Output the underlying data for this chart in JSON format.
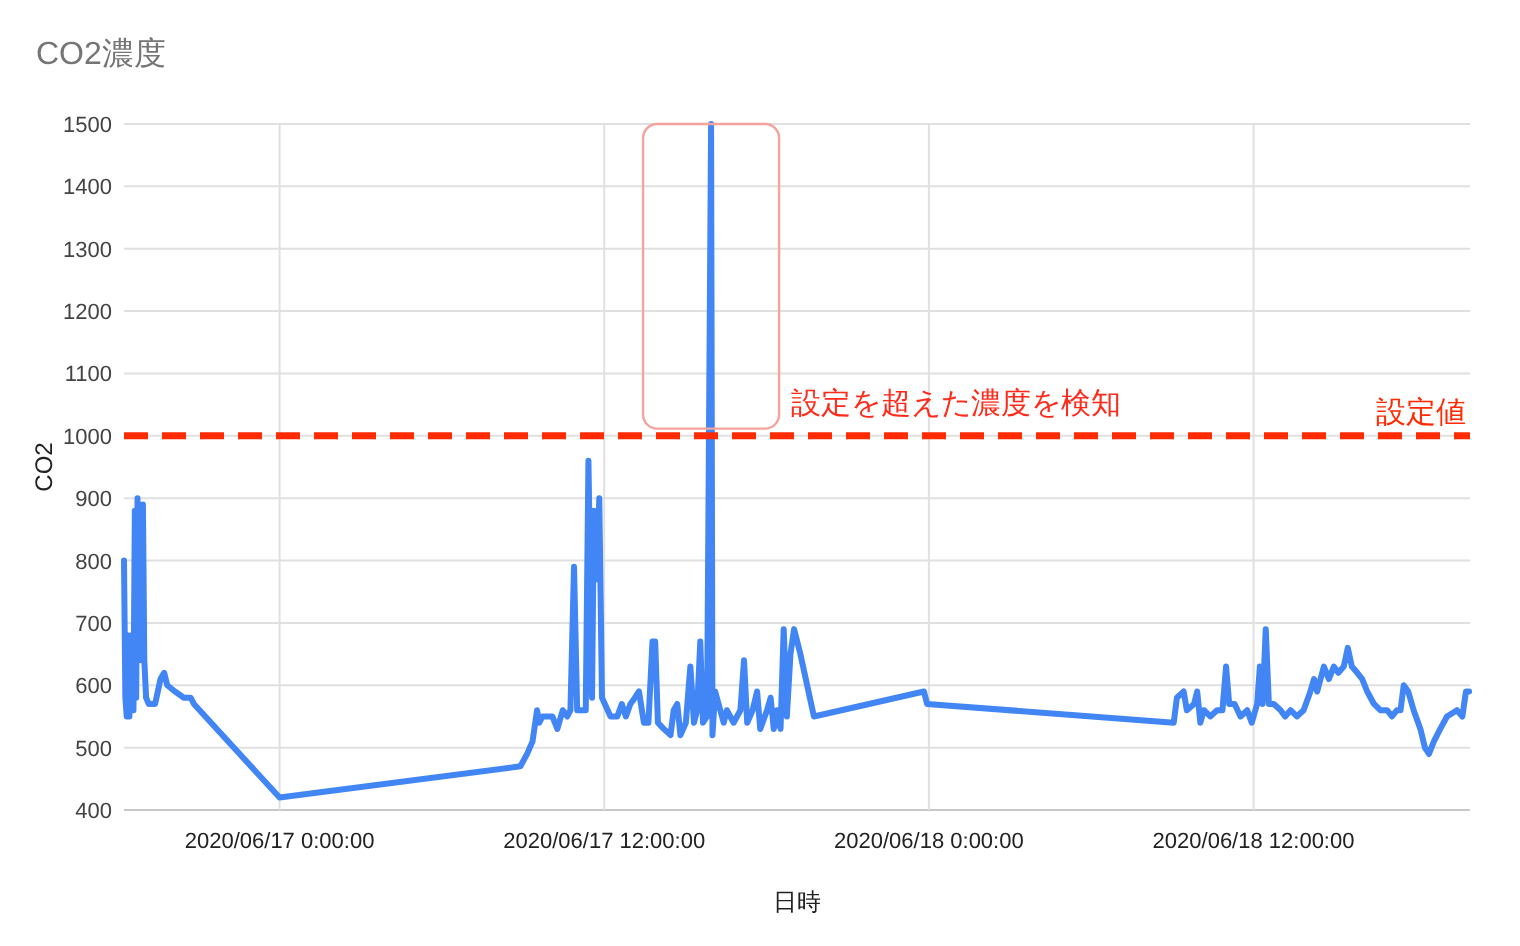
{
  "chart_data": {
    "type": "line",
    "title": "CO2濃度",
    "xlabel": "日時",
    "ylabel": "CO2",
    "x": [
      "2020-06-16T18:15",
      "2020-06-16T18:18",
      "2020-06-16T18:21",
      "2020-06-16T18:24",
      "2020-06-16T18:27",
      "2020-06-16T18:30",
      "2020-06-16T18:33",
      "2020-06-16T18:36",
      "2020-06-16T18:39",
      "2020-06-16T18:42",
      "2020-06-16T18:45",
      "2020-06-16T18:48",
      "2020-06-16T18:51",
      "2020-06-16T18:54",
      "2020-06-16T18:57",
      "2020-06-16T19:00",
      "2020-06-16T19:04",
      "2020-06-16T19:10",
      "2020-06-16T19:24",
      "2020-06-16T19:36",
      "2020-06-16T19:44",
      "2020-06-16T19:51",
      "2020-06-16T20:08",
      "2020-06-16T20:28",
      "2020-06-16T20:43",
      "2020-06-16T20:50",
      "2020-06-17T00:00",
      "2020-06-17T08:54",
      "2020-06-17T09:09",
      "2020-06-17T09:21",
      "2020-06-17T09:31",
      "2020-06-17T09:36",
      "2020-06-17T09:43",
      "2020-06-17T09:53",
      "2020-06-17T10:05",
      "2020-06-17T10:16",
      "2020-06-17T10:28",
      "2020-06-17T10:38",
      "2020-06-17T10:45",
      "2020-06-17T10:53",
      "2020-06-17T11:00",
      "2020-06-17T11:12",
      "2020-06-17T11:19",
      "2020-06-17T11:25",
      "2020-06-17T11:33",
      "2020-06-17T11:37",
      "2020-06-17T11:44",
      "2020-06-17T11:49",
      "2020-06-17T11:55",
      "2020-06-17T12:14",
      "2020-06-17T12:29",
      "2020-06-17T12:39",
      "2020-06-17T12:48",
      "2020-06-17T12:58",
      "2020-06-17T13:08",
      "2020-06-17T13:17",
      "2020-06-17T13:28",
      "2020-06-17T13:38",
      "2020-06-17T13:47",
      "2020-06-17T13:53",
      "2020-06-17T13:59",
      "2020-06-17T14:12",
      "2020-06-17T14:27",
      "2020-06-17T14:34",
      "2020-06-17T14:42",
      "2020-06-17T14:49",
      "2020-06-17T15:01",
      "2020-06-17T15:11",
      "2020-06-17T15:19",
      "2020-06-17T15:26",
      "2020-06-17T15:33",
      "2020-06-17T15:39",
      "2020-06-17T15:48",
      "2020-06-17T15:57",
      "2020-06-17T16:00",
      "2020-06-17T16:06",
      "2020-06-17T16:25",
      "2020-06-17T16:32",
      "2020-06-17T16:47",
      "2020-06-17T17:02",
      "2020-06-17T17:10",
      "2020-06-17T17:17",
      "2020-06-17T17:29",
      "2020-06-17T17:39",
      "2020-06-17T17:46",
      "2020-06-17T18:01",
      "2020-06-17T18:09",
      "2020-06-17T18:16",
      "2020-06-17T18:23",
      "2020-06-17T18:31",
      "2020-06-17T18:38",
      "2020-06-17T18:45",
      "2020-06-17T18:53",
      "2020-06-17T19:01",
      "2020-06-17T19:15",
      "2020-06-17T19:45",
      "2020-06-17T23:49",
      "2020-06-17T23:56",
      "2020-06-18T09:03",
      "2020-06-18T09:10",
      "2020-06-18T09:25",
      "2020-06-18T09:32",
      "2020-06-18T09:48",
      "2020-06-18T09:55",
      "2020-06-18T10:02",
      "2020-06-18T10:10",
      "2020-06-18T10:24",
      "2020-06-18T10:39",
      "2020-06-18T10:51",
      "2020-06-18T10:59",
      "2020-06-18T11:06",
      "2020-06-18T11:18",
      "2020-06-18T11:31",
      "2020-06-18T11:46",
      "2020-06-18T11:56",
      "2020-06-18T12:08",
      "2020-06-18T12:14",
      "2020-06-18T12:20",
      "2020-06-18T12:27",
      "2020-06-18T12:34",
      "2020-06-18T12:45",
      "2020-06-18T13:00",
      "2020-06-18T13:10",
      "2020-06-18T13:22",
      "2020-06-18T13:36",
      "2020-06-18T13:51",
      "2020-06-18T14:06",
      "2020-06-18T14:14",
      "2020-06-18T14:21",
      "2020-06-18T14:36",
      "2020-06-18T14:47",
      "2020-06-18T14:58",
      "2020-06-18T15:08",
      "2020-06-18T15:20",
      "2020-06-18T15:29",
      "2020-06-18T15:38",
      "2020-06-18T15:50",
      "2020-06-18T16:01",
      "2020-06-18T16:12",
      "2020-06-18T16:27",
      "2020-06-18T16:41",
      "2020-06-18T16:56",
      "2020-06-18T17:07",
      "2020-06-18T17:18",
      "2020-06-18T17:26",
      "2020-06-18T17:33",
      "2020-06-18T17:43",
      "2020-06-18T17:55",
      "2020-06-18T18:10",
      "2020-06-18T18:20",
      "2020-06-18T18:29",
      "2020-06-18T18:40",
      "2020-06-18T18:54",
      "2020-06-18T19:09",
      "2020-06-18T19:31",
      "2020-06-18T19:43",
      "2020-06-18T19:51",
      "2020-06-18T19:58"
    ],
    "series": [
      {
        "color": "#4285f4",
        "values": [
          800,
          580,
          550,
          680,
          550,
          680,
          590,
          560,
          880,
          580,
          900,
          640,
          880,
          640,
          890,
          640,
          580,
          570,
          570,
          610,
          620,
          600,
          590,
          580,
          580,
          570,
          420,
          470,
          490,
          510,
          560,
          540,
          550,
          550,
          550,
          530,
          560,
          550,
          560,
          790,
          560,
          560,
          560,
          960,
          580,
          880,
          770,
          900,
          580,
          550,
          550,
          570,
          550,
          570,
          580,
          590,
          540,
          540,
          670,
          670,
          540,
          530,
          520,
          560,
          570,
          520,
          540,
          630,
          540,
          560,
          670,
          540,
          550,
          1500,
          520,
          590,
          540,
          560,
          540,
          560,
          640,
          540,
          560,
          590,
          530,
          560,
          580,
          530,
          560,
          530,
          690,
          550,
          650,
          690,
          650,
          550,
          590,
          570,
          540,
          580,
          590,
          560,
          570,
          590,
          540,
          560,
          550,
          560,
          560,
          630,
          570,
          570,
          550,
          560,
          540,
          570,
          630,
          570,
          690,
          570,
          570,
          560,
          550,
          560,
          550,
          560,
          590,
          610,
          590,
          630,
          610,
          630,
          620,
          630,
          660,
          630,
          620,
          610,
          590,
          570,
          560,
          560,
          550,
          560,
          560,
          600,
          590,
          560,
          530,
          500,
          490,
          510,
          530,
          550,
          560,
          550,
          590,
          590
        ]
      }
    ],
    "xlim": [
      "2020-06-16T18:15",
      "2020-06-18T20:00"
    ],
    "ylim": [
      400,
      1500
    ],
    "xticks": [
      {
        "value": "2020-06-17T00:00",
        "label": "2020/06/17 0:00:00"
      },
      {
        "value": "2020-06-17T12:00",
        "label": "2020/06/17 12:00:00"
      },
      {
        "value": "2020-06-18T00:00",
        "label": "2020/06/18 0:00:00"
      },
      {
        "value": "2020-06-18T12:00",
        "label": "2020/06/18 12:00:00"
      }
    ],
    "yticks": [
      400,
      500,
      600,
      700,
      800,
      900,
      1000,
      1100,
      1200,
      1300,
      1400,
      1500
    ],
    "grid": true,
    "ref_lines": [
      {
        "axis": "y",
        "value": 1000,
        "label": "設定値",
        "color": "#ff2a00",
        "line_style": "dashed"
      }
    ],
    "annotations": [
      "設定を超えた濃度を検知"
    ]
  }
}
